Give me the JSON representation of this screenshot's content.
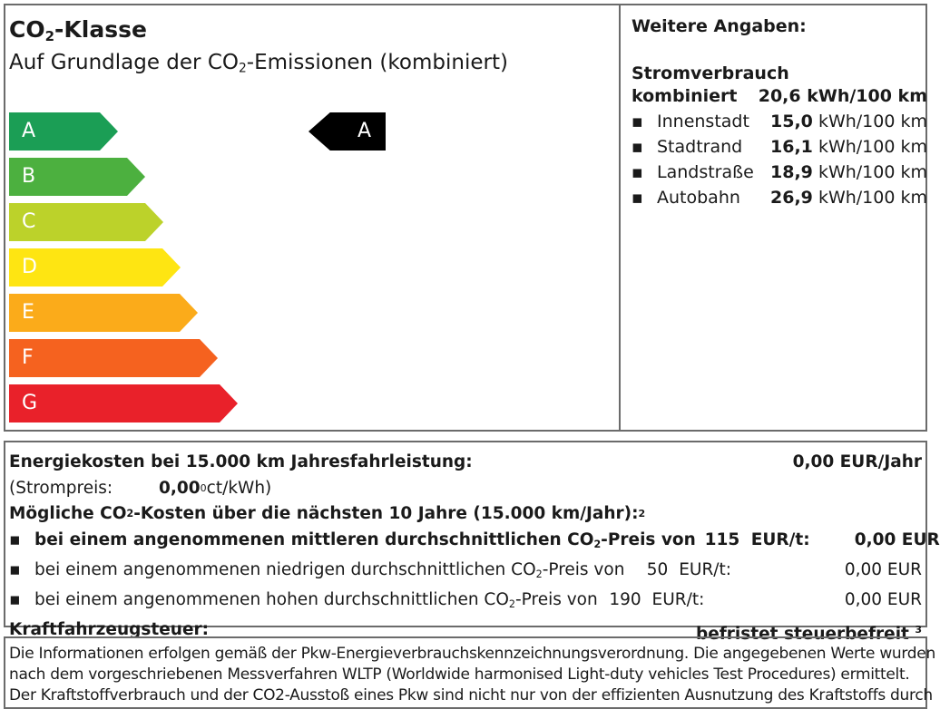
{
  "label": {
    "title_pre": "CO",
    "title_sub": "2",
    "title_post": "-Klasse",
    "subtitle_pre": "Auf Grundlage der CO",
    "subtitle_sub": "2",
    "subtitle_post": "-Emissionen (kombiniert)",
    "classes": [
      {
        "letter": "A",
        "color": "#1b9e55"
      },
      {
        "letter": "B",
        "color": "#4cb03f"
      },
      {
        "letter": "C",
        "color": "#bcd22a"
      },
      {
        "letter": "D",
        "color": "#fee512"
      },
      {
        "letter": "E",
        "color": "#fbab1a"
      },
      {
        "letter": "F",
        "color": "#f5621f"
      },
      {
        "letter": "G",
        "color": "#e9212a"
      }
    ],
    "current_class": "A"
  },
  "further": {
    "title": "Weitere Angaben:",
    "heading": "Stromverbrauch",
    "combined_label": "kombiniert",
    "combined_value": "20,6 kWh/100 km",
    "items": [
      {
        "name": "Innenstadt",
        "value": "15,0",
        "unit": "kWh/100 km"
      },
      {
        "name": "Stadtrand",
        "value": "16,1",
        "unit": "kWh/100 km"
      },
      {
        "name": "Landstraße",
        "value": "18,9",
        "unit": "kWh/100 km"
      },
      {
        "name": "Autobahn",
        "value": "26,9",
        "unit": "kWh/100 km"
      }
    ]
  },
  "costs": {
    "energy_label": "Energiekosten bei 15.000 km Jahresfahrleistung:",
    "energy_value": "0,00 EUR/Jahr",
    "price_label": "(Strompreis:",
    "price_value": "0,00",
    "price_sup": "0",
    "price_unit": "ct/kWh)",
    "co2_pre": "Mögliche CO",
    "co2_sub": "2",
    "co2_post": "-Kosten über die nächsten 10 Jahre (15.000 km/Jahr):",
    "co2_sup": "2",
    "scenarios": [
      {
        "pre": "bei einem angenommenen mittleren durchschnittlichen CO",
        "post": "-Preis von",
        "price": "115",
        "unit": "EUR/t:",
        "value": "0,00 EUR",
        "bold": true
      },
      {
        "pre": "bei einem angenommenen niedrigen durchschnittlichen CO",
        "post": "-Preis von",
        "price": "50",
        "unit": "EUR/t:",
        "value": "0,00 EUR",
        "bold": false
      },
      {
        "pre": "bei einem angenommenen hohen durchschnittlichen CO",
        "post": "-Preis von",
        "price": "190",
        "unit": "EUR/t:",
        "value": "0,00 EUR",
        "bold": false
      }
    ],
    "tax_label": "Kraftfahrzeugsteuer:",
    "tax_value": "befristet steuerbefreit",
    "tax_sup": "3"
  },
  "footer": {
    "line1": "Die Informationen erfolgen gemäß der Pkw-Energieverbrauchskennzeichnungsverordnung. Die angegebenen Werte wurden",
    "line2": "nach dem vorgeschriebenen Messverfahren WLTP (Worldwide harmonised Light-duty vehicles Test Procedures) ermittelt.",
    "line3": "Der Kraftstoffverbrauch und der CO2-Ausstoß eines Pkw sind nicht nur von der effizienten Ausnutzung des Kraftstoffs durch"
  }
}
